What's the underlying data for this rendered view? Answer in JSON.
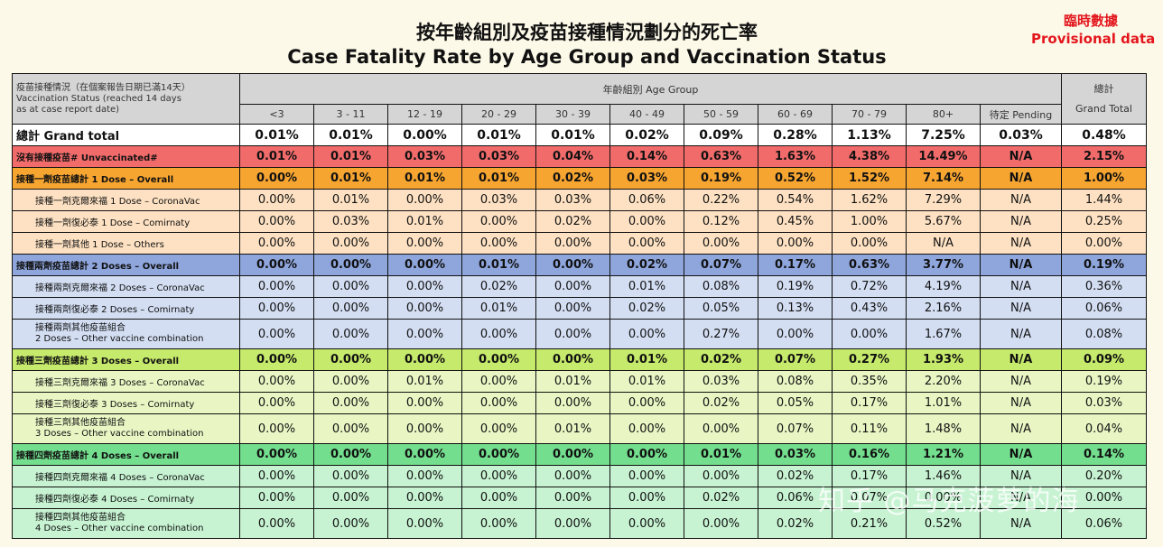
{
  "title_zh": "按年齡組別及疫苗接種情況劃分的死亡率",
  "title_en": "Case Fatality Rate by Age Group and Vaccination Status",
  "provisional_zh": "臨時數據",
  "provisional_en": "Provisional data",
  "header": {
    "status_line1": "疫苗接種情況（在個案報告日期已滿14天）",
    "status_line2": "Vaccination Status (reached 14 days",
    "status_line3": "as at case report date)",
    "age_group": "年齡組別 Age Group",
    "grand_total_zh": "總計",
    "grand_total_en": "Grand Total",
    "ages": [
      "<3",
      "3 - 11",
      "12 - 19",
      "20 - 29",
      "30 - 39",
      "40 - 49",
      "50 - 59",
      "60 - 69",
      "70 - 79",
      "80+",
      "待定 Pending"
    ]
  },
  "rows": [
    {
      "label": "總計 Grand total",
      "values": [
        "0.01%",
        "0.01%",
        "0.00%",
        "0.01%",
        "0.01%",
        "0.02%",
        "0.09%",
        "0.28%",
        "1.13%",
        "7.25%",
        "0.03%",
        "0.48%"
      ]
    },
    {
      "label": "沒有接種疫苗# Unvaccinated#",
      "values": [
        "0.01%",
        "0.01%",
        "0.03%",
        "0.03%",
        "0.04%",
        "0.14%",
        "0.63%",
        "1.63%",
        "4.38%",
        "14.49%",
        "N/A",
        "2.15%"
      ]
    },
    {
      "label": "接種一劑疫苗總計 1 Dose – Overall",
      "values": [
        "0.00%",
        "0.01%",
        "0.01%",
        "0.01%",
        "0.02%",
        "0.03%",
        "0.19%",
        "0.52%",
        "1.52%",
        "7.14%",
        "N/A",
        "1.00%"
      ]
    },
    {
      "label": "接種一劑克爾來福 1 Dose – CoronaVac",
      "values": [
        "0.00%",
        "0.01%",
        "0.00%",
        "0.03%",
        "0.03%",
        "0.06%",
        "0.22%",
        "0.54%",
        "1.62%",
        "7.29%",
        "N/A",
        "1.44%"
      ]
    },
    {
      "label": "接種一劑復必泰 1 Dose – Comirnaty",
      "values": [
        "0.00%",
        "0.03%",
        "0.01%",
        "0.00%",
        "0.02%",
        "0.00%",
        "0.12%",
        "0.45%",
        "1.00%",
        "5.67%",
        "N/A",
        "0.25%"
      ]
    },
    {
      "label": "接種一劑其他 1 Dose – Others",
      "values": [
        "0.00%",
        "0.00%",
        "0.00%",
        "0.00%",
        "0.00%",
        "0.00%",
        "0.00%",
        "0.00%",
        "0.00%",
        "N/A",
        "N/A",
        "0.00%"
      ]
    },
    {
      "label": "接種兩劑疫苗總計 2 Doses – Overall",
      "values": [
        "0.00%",
        "0.00%",
        "0.00%",
        "0.01%",
        "0.00%",
        "0.02%",
        "0.07%",
        "0.17%",
        "0.63%",
        "3.77%",
        "N/A",
        "0.19%"
      ]
    },
    {
      "label": "接種兩劑克爾來福 2 Doses – CoronaVac",
      "values": [
        "0.00%",
        "0.00%",
        "0.00%",
        "0.02%",
        "0.00%",
        "0.01%",
        "0.08%",
        "0.19%",
        "0.72%",
        "4.19%",
        "N/A",
        "0.36%"
      ]
    },
    {
      "label": "接種兩劑復必泰 2 Doses – Comirnaty",
      "values": [
        "0.00%",
        "0.00%",
        "0.00%",
        "0.01%",
        "0.00%",
        "0.02%",
        "0.05%",
        "0.13%",
        "0.43%",
        "2.16%",
        "N/A",
        "0.06%"
      ]
    },
    {
      "label": "接種兩劑其他疫苗組合",
      "label2": "2 Doses – Other vaccine combination",
      "values": [
        "0.00%",
        "0.00%",
        "0.00%",
        "0.00%",
        "0.00%",
        "0.00%",
        "0.27%",
        "0.00%",
        "0.00%",
        "1.67%",
        "N/A",
        "0.08%"
      ]
    },
    {
      "label": "接種三劑疫苗總計 3 Doses – Overall",
      "values": [
        "0.00%",
        "0.00%",
        "0.00%",
        "0.00%",
        "0.00%",
        "0.01%",
        "0.02%",
        "0.07%",
        "0.27%",
        "1.93%",
        "N/A",
        "0.09%"
      ]
    },
    {
      "label": "接種三劑克爾來福 3 Doses – CoronaVac",
      "values": [
        "0.00%",
        "0.00%",
        "0.01%",
        "0.00%",
        "0.01%",
        "0.01%",
        "0.03%",
        "0.08%",
        "0.35%",
        "2.20%",
        "N/A",
        "0.19%"
      ]
    },
    {
      "label": "接種三劑復必泰 3 Doses – Comirnaty",
      "values": [
        "0.00%",
        "0.00%",
        "0.00%",
        "0.00%",
        "0.00%",
        "0.00%",
        "0.02%",
        "0.05%",
        "0.17%",
        "1.01%",
        "N/A",
        "0.03%"
      ]
    },
    {
      "label": "接種三劑其他疫苗組合",
      "label2": "3 Doses – Other vaccine combination",
      "values": [
        "0.00%",
        "0.00%",
        "0.00%",
        "0.00%",
        "0.01%",
        "0.00%",
        "0.00%",
        "0.07%",
        "0.11%",
        "1.48%",
        "N/A",
        "0.04%"
      ]
    },
    {
      "label": "接種四劑疫苗總計 4 Doses – Overall",
      "values": [
        "0.00%",
        "0.00%",
        "0.00%",
        "0.00%",
        "0.00%",
        "0.00%",
        "0.01%",
        "0.03%",
        "0.16%",
        "1.21%",
        "N/A",
        "0.14%"
      ]
    },
    {
      "label": "接種四劑克爾來福 4 Doses – CoronaVac",
      "values": [
        "0.00%",
        "0.00%",
        "0.00%",
        "0.00%",
        "0.00%",
        "0.00%",
        "0.00%",
        "0.02%",
        "0.17%",
        "1.46%",
        "N/A",
        "0.20%"
      ]
    },
    {
      "label": "接種四劑復必泰 4 Doses – Comirnaty",
      "values": [
        "0.00%",
        "0.00%",
        "0.00%",
        "0.00%",
        "0.00%",
        "0.00%",
        "0.02%",
        "0.06%",
        "0.07%",
        "0.00%",
        "N/A",
        "0.00%"
      ]
    },
    {
      "label": "接種四劑其他疫苗組合",
      "label2": "4 Doses – Other vaccine combination",
      "values": [
        "0.00%",
        "0.00%",
        "0.00%",
        "0.00%",
        "0.00%",
        "0.00%",
        "0.00%",
        "0.02%",
        "0.21%",
        "0.52%",
        "N/A",
        "0.06%"
      ]
    }
  ],
  "watermark": "知乎 @马克菠萝的海"
}
